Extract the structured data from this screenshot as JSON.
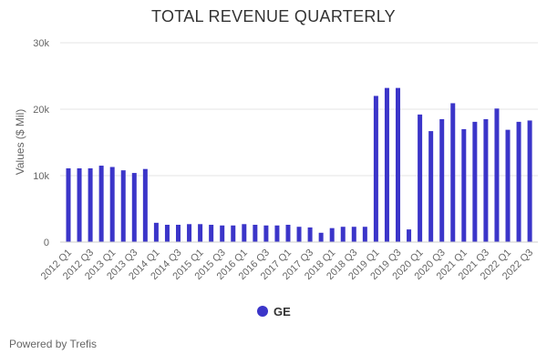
{
  "colors": {
    "bar": "#3b35c9",
    "grid": "#e6e6e6",
    "axis_text": "#666666",
    "title_text": "#333333"
  },
  "footer": {
    "text": "Powered by Trefis"
  },
  "chart_data": {
    "type": "bar",
    "title": "TOTAL REVENUE QUARTERLY",
    "xlabel": "",
    "ylabel": "Values ($ Mil)",
    "ylim": [
      0,
      30000
    ],
    "yticks": [
      0,
      10000,
      20000,
      30000
    ],
    "ytick_labels": [
      "0",
      "10k",
      "20k",
      "30k"
    ],
    "grid": true,
    "legend": {
      "position": "bottom-center",
      "entries": [
        "GE"
      ]
    },
    "categories": [
      "2012 Q1",
      "2012 Q2",
      "2012 Q3",
      "2012 Q4",
      "2013 Q1",
      "2013 Q2",
      "2013 Q3",
      "2013 Q4",
      "2014 Q1",
      "2014 Q2",
      "2014 Q3",
      "2014 Q4",
      "2015 Q1",
      "2015 Q2",
      "2015 Q3",
      "2015 Q4",
      "2016 Q1",
      "2016 Q2",
      "2016 Q3",
      "2016 Q4",
      "2017 Q1",
      "2017 Q2",
      "2017 Q3",
      "2017 Q4",
      "2018 Q1",
      "2018 Q2",
      "2018 Q3",
      "2018 Q4",
      "2019 Q1",
      "2019 Q2",
      "2019 Q3",
      "2019 Q4",
      "2020 Q1",
      "2020 Q2",
      "2020 Q3",
      "2020 Q4",
      "2021 Q1",
      "2021 Q2",
      "2021 Q3",
      "2021 Q4",
      "2022 Q1",
      "2022 Q2",
      "2022 Q3"
    ],
    "shown_tick_labels": [
      "2012 Q1",
      "2012 Q3",
      "2013 Q1",
      "2013 Q3",
      "2014 Q1",
      "2014 Q3",
      "2015 Q1",
      "2015 Q3",
      "2016 Q1",
      "2016 Q3",
      "2017 Q1",
      "2017 Q3",
      "2018 Q1",
      "2018 Q3",
      "2019 Q1",
      "2019 Q3",
      "2020 Q1",
      "2020 Q3",
      "2021 Q1",
      "2021 Q3",
      "2022 Q1",
      "2022 Q3"
    ],
    "series": [
      {
        "name": "GE",
        "values": [
          11100,
          11100,
          11100,
          11500,
          11300,
          10800,
          10400,
          11000,
          2900,
          2600,
          2600,
          2700,
          2700,
          2600,
          2500,
          2500,
          2700,
          2600,
          2500,
          2500,
          2600,
          2300,
          2200,
          1400,
          2100,
          2300,
          2300,
          2300,
          22000,
          23200,
          23200,
          1900,
          19200,
          16700,
          18500,
          20900,
          17000,
          18100,
          18500,
          20100,
          16900,
          18100,
          18300
        ]
      }
    ]
  }
}
